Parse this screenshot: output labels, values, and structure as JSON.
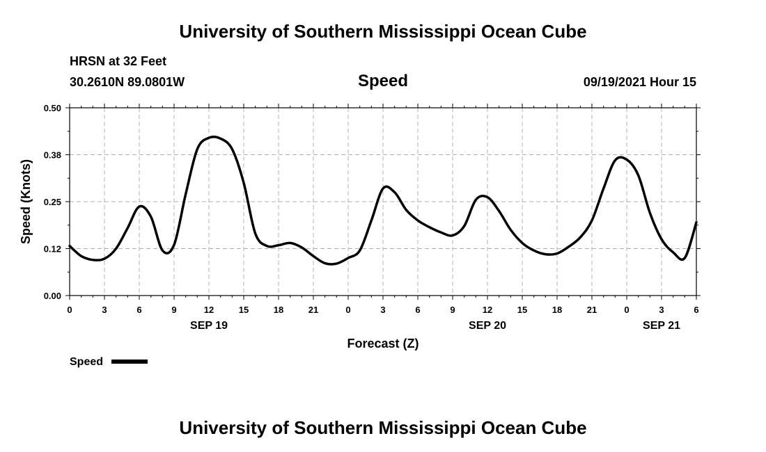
{
  "header": {
    "title_top": "University of Southern Mississippi Ocean Cube",
    "station": "HRSN at 32 Feet",
    "coords": "30.2610N  89.0801W",
    "variable": "Speed",
    "date": "09/19/2021 Hour 15",
    "title_bottom": "University of Southern Mississippi Ocean Cube"
  },
  "legend": {
    "label": "Speed"
  },
  "chart_data": {
    "type": "line",
    "title": "Speed",
    "xlabel": "Forecast (Z)",
    "ylabel": "Speed (Knots)",
    "xlim": [
      0,
      54
    ],
    "ylim": [
      0,
      0.5
    ],
    "grid": true,
    "yticks": [
      0.0,
      0.125,
      0.25,
      0.375,
      0.5
    ],
    "ytick_labels": [
      "0.00",
      "0.12",
      "0.25",
      "0.38",
      "0.50"
    ],
    "xticks": [
      0,
      3,
      6,
      9,
      12,
      15,
      18,
      21,
      24,
      27,
      30,
      33,
      36,
      39,
      42,
      45,
      48,
      51,
      54
    ],
    "xtick_labels": [
      "0",
      "3",
      "6",
      "9",
      "12",
      "15",
      "18",
      "21",
      "0",
      "3",
      "6",
      "9",
      "12",
      "15",
      "18",
      "21",
      "0",
      "3",
      "6"
    ],
    "day_labels": [
      {
        "x": 12,
        "label": "SEP 19"
      },
      {
        "x": 36,
        "label": "SEP 20"
      },
      {
        "x": 51,
        "label": "SEP 21"
      }
    ],
    "series": [
      {
        "name": "Speed",
        "color": "#000000",
        "x": [
          0,
          1,
          2,
          3,
          4,
          5,
          6,
          7,
          8,
          9,
          10,
          11,
          12,
          13,
          14,
          15,
          16,
          17,
          18,
          19,
          20,
          21,
          22,
          23,
          24,
          25,
          26,
          27,
          28,
          29,
          30,
          31,
          32,
          33,
          34,
          35,
          36,
          37,
          38,
          39,
          40,
          41,
          42,
          43,
          44,
          45,
          46,
          47,
          48,
          49,
          50,
          51,
          52,
          53,
          54
        ],
        "values": [
          0.132,
          0.105,
          0.095,
          0.098,
          0.125,
          0.18,
          0.237,
          0.21,
          0.12,
          0.135,
          0.27,
          0.39,
          0.42,
          0.418,
          0.39,
          0.3,
          0.165,
          0.132,
          0.134,
          0.14,
          0.128,
          0.105,
          0.086,
          0.085,
          0.1,
          0.12,
          0.2,
          0.285,
          0.275,
          0.228,
          0.2,
          0.182,
          0.168,
          0.16,
          0.185,
          0.255,
          0.262,
          0.225,
          0.175,
          0.14,
          0.12,
          0.11,
          0.112,
          0.13,
          0.155,
          0.2,
          0.285,
          0.36,
          0.362,
          0.32,
          0.22,
          0.15,
          0.115,
          0.1,
          0.195
        ]
      }
    ]
  }
}
